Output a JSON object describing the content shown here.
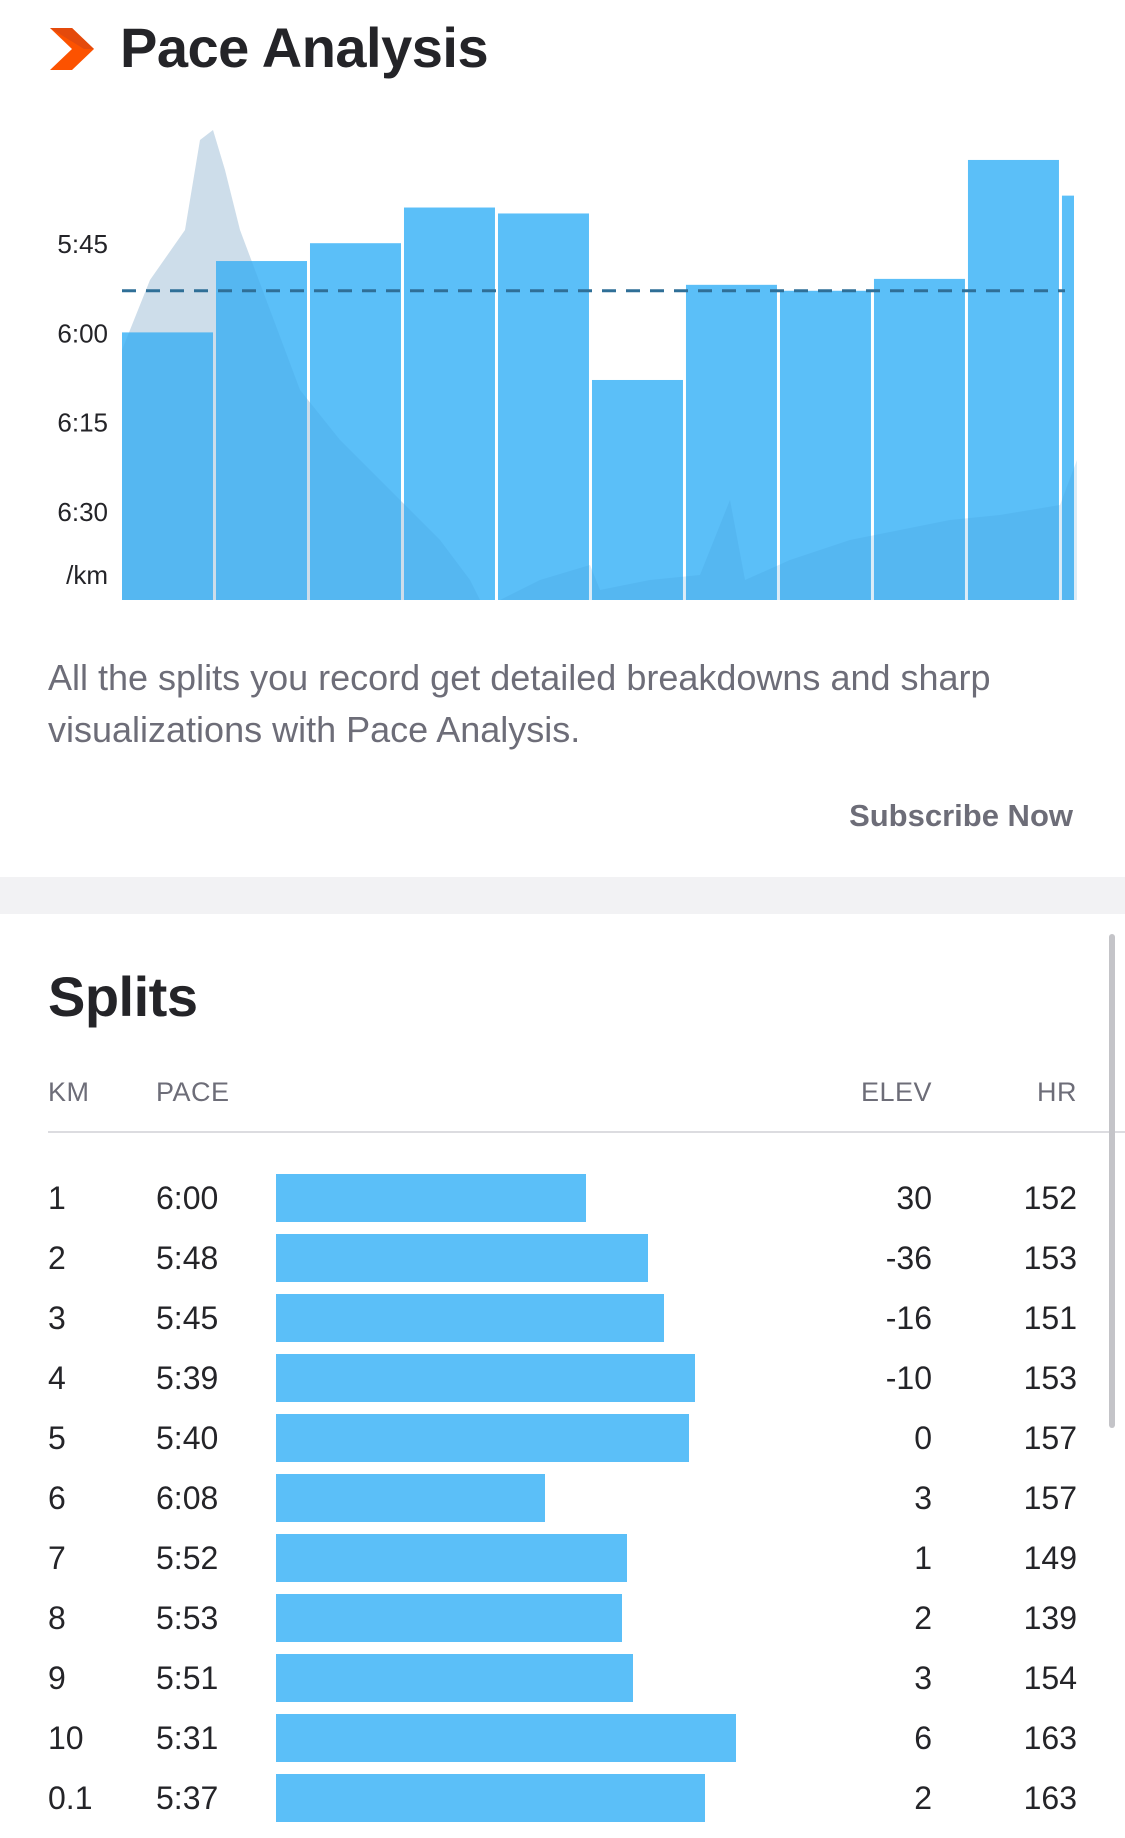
{
  "pace_analysis": {
    "title": "Pace Analysis",
    "description": "All the splits you record get detailed breakdowns and sharp visualizations with Pace Analysis.",
    "subscribe_label": "Subscribe Now",
    "icon": "chevron-right-icon",
    "accent_color": "#fc5200",
    "bar_color": "#5bbff8"
  },
  "chart_data": {
    "type": "bar",
    "y_tick_labels": [
      "5:45",
      "6:00",
      "6:15",
      "6:30"
    ],
    "y_unit": "/km",
    "y_range_seconds_per_km": [
      330,
      405
    ],
    "y_axis_inverted": true,
    "average_pace_line_seconds_per_km": 353,
    "categories": [
      "1",
      "2",
      "3",
      "4",
      "5",
      "6",
      "7",
      "8",
      "9",
      "10",
      "0.1"
    ],
    "series": [
      {
        "values": [
          360,
          348,
          345,
          339,
          340,
          368,
          352,
          353,
          351,
          331,
          337
        ]
      }
    ]
  },
  "splits": {
    "title": "Splits",
    "headers": {
      "km": "KM",
      "pace": "PACE",
      "elev": "ELEV",
      "hr": "HR"
    },
    "pace_range_seconds": [
      300,
      420
    ],
    "rows": [
      {
        "km": "1",
        "pace": "6:00",
        "pace_seconds": 360,
        "elev": "30",
        "hr": "152"
      },
      {
        "km": "2",
        "pace": "5:48",
        "pace_seconds": 348,
        "elev": "-36",
        "hr": "153"
      },
      {
        "km": "3",
        "pace": "5:45",
        "pace_seconds": 345,
        "elev": "-16",
        "hr": "151"
      },
      {
        "km": "4",
        "pace": "5:39",
        "pace_seconds": 339,
        "elev": "-10",
        "hr": "153"
      },
      {
        "km": "5",
        "pace": "5:40",
        "pace_seconds": 340,
        "elev": "0",
        "hr": "157"
      },
      {
        "km": "6",
        "pace": "6:08",
        "pace_seconds": 368,
        "elev": "3",
        "hr": "157"
      },
      {
        "km": "7",
        "pace": "5:52",
        "pace_seconds": 352,
        "elev": "1",
        "hr": "149"
      },
      {
        "km": "8",
        "pace": "5:53",
        "pace_seconds": 353,
        "elev": "2",
        "hr": "139"
      },
      {
        "km": "9",
        "pace": "5:51",
        "pace_seconds": 351,
        "elev": "3",
        "hr": "154"
      },
      {
        "km": "10",
        "pace": "5:31",
        "pace_seconds": 331,
        "elev": "6",
        "hr": "163"
      },
      {
        "km": "0.1",
        "pace": "5:37",
        "pace_seconds": 337,
        "elev": "2",
        "hr": "163"
      }
    ]
  }
}
